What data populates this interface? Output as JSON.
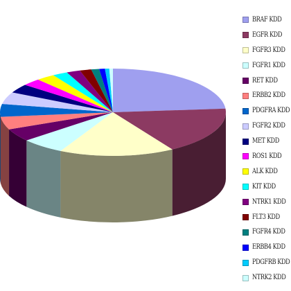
{
  "chart_data": {
    "type": "pie",
    "title": "",
    "legend_position": "right",
    "slices": [
      {
        "label": "BRAF KDD",
        "value": 23.0,
        "color": "#9f9fef"
      },
      {
        "label": "EGFR KDD",
        "value": 17.0,
        "color": "#8c3a62"
      },
      {
        "label": "FGFR3 KDD",
        "value": 16.0,
        "color": "#ffffc9"
      },
      {
        "label": "FGFR1 KDD",
        "value": 6.0,
        "color": "#ccffff"
      },
      {
        "label": "RET KDD",
        "value": 4.6,
        "color": "#660066"
      },
      {
        "label": "ERBB2 KDD",
        "value": 4.6,
        "color": "#ff7f7f"
      },
      {
        "label": "PDGFRA KDD",
        "value": 4.6,
        "color": "#0066cc"
      },
      {
        "label": "FGFR2 KDD",
        "value": 4.3,
        "color": "#ccccff"
      },
      {
        "label": "MET KDD",
        "value": 3.2,
        "color": "#000080"
      },
      {
        "label": "ROS1 KDD",
        "value": 2.6,
        "color": "#ff00ff"
      },
      {
        "label": "ALK KDD",
        "value": 2.6,
        "color": "#ffff00"
      },
      {
        "label": "KIT KDD",
        "value": 2.1,
        "color": "#00ffff"
      },
      {
        "label": "NTRK1 KDD",
        "value": 1.9,
        "color": "#800080"
      },
      {
        "label": "FLT3 KDD",
        "value": 1.6,
        "color": "#800000"
      },
      {
        "label": "FGFR4 KDD",
        "value": 1.1,
        "color": "#008080"
      },
      {
        "label": "ERBB4 KDD",
        "value": 0.8,
        "color": "#0000ff"
      },
      {
        "label": "PDGFRB KDD",
        "value": 0.6,
        "color": "#00ccff"
      },
      {
        "label": "NTRK2 KDD",
        "value": 0.5,
        "color": "#ccffff"
      }
    ]
  }
}
